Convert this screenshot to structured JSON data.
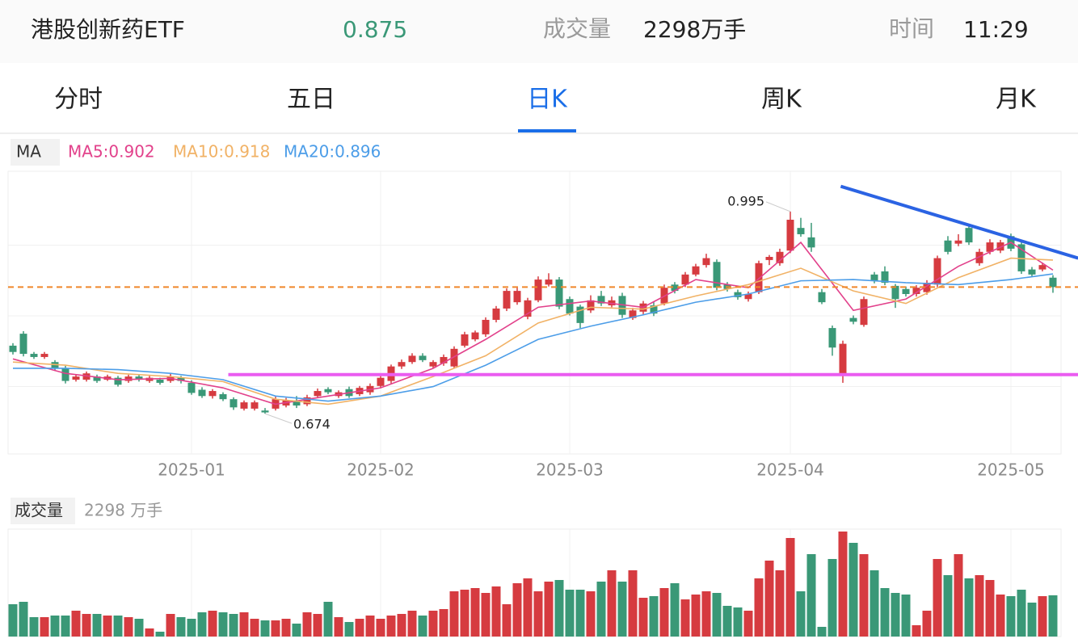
{
  "header": {
    "name": "港股创新药ETF",
    "price": 0.875,
    "volume_label": "成交量",
    "volume": "2298万手",
    "time_label": "时间",
    "time": "11:29"
  },
  "tabs": [
    "分时",
    "五日",
    "日K",
    "周K",
    "月K"
  ],
  "active_tab": "日K",
  "chart_data": {
    "type": "candlestick",
    "legend_label": "MA",
    "categories": [
      null,
      null,
      null,
      null,
      null,
      null,
      null,
      null,
      null,
      null,
      null,
      null,
      null,
      null,
      null,
      null,
      null,
      "2025-01",
      null,
      null,
      null,
      null,
      null,
      null,
      null,
      null,
      null,
      null,
      null,
      null,
      null,
      null,
      null,
      null,
      null,
      "2025-02",
      null,
      null,
      null,
      null,
      null,
      null,
      null,
      null,
      null,
      null,
      null,
      null,
      null,
      null,
      null,
      null,
      null,
      "2025-03",
      null,
      null,
      null,
      null,
      null,
      null,
      null,
      null,
      null,
      null,
      null,
      null,
      null,
      null,
      null,
      null,
      null,
      null,
      null,
      null,
      "2025-04",
      null,
      null,
      null,
      null,
      null,
      null,
      null,
      null,
      null,
      null,
      null,
      null,
      null,
      null,
      null,
      null,
      null,
      null,
      null,
      null,
      "2025-05",
      null,
      null,
      null,
      null
    ],
    "open": [
      0.782,
      0.801,
      0.769,
      0.764,
      0.756,
      0.746,
      0.728,
      0.728,
      0.733,
      0.728,
      0.731,
      0.726,
      0.733,
      0.726,
      0.728,
      0.726,
      0.731,
      0.723,
      0.712,
      0.702,
      0.705,
      0.697,
      0.682,
      0.682,
      0.679,
      0.682,
      0.687,
      0.695,
      0.689,
      0.702,
      0.713,
      0.702,
      0.713,
      0.705,
      0.708,
      0.718,
      0.726,
      0.749,
      0.756,
      0.766,
      0.749,
      0.754,
      0.749,
      0.782,
      0.792,
      0.8,
      0.823,
      0.841,
      0.851,
      0.828,
      0.854,
      0.879,
      0.887,
      0.856,
      0.844,
      0.838,
      0.861,
      0.846,
      0.861,
      0.826,
      0.836,
      0.846,
      0.849,
      0.879,
      0.879,
      0.895,
      0.91,
      0.915,
      0.879,
      0.867,
      0.856,
      0.867,
      0.918,
      0.913,
      0.933,
      0.969,
      0.954,
      0.867,
      0.81,
      0.738,
      0.826,
      0.815,
      0.895,
      0.9,
      0.877,
      0.872,
      0.864,
      0.867,
      0.879,
      0.949,
      0.944,
      0.969,
      0.913,
      0.931,
      0.933,
      0.956,
      0.943,
      0.903,
      0.903,
      0.89
    ],
    "high": [
      0.786,
      0.805,
      0.772,
      0.772,
      0.759,
      0.75,
      0.736,
      0.741,
      0.736,
      0.736,
      0.734,
      0.736,
      0.736,
      0.734,
      0.731,
      0.737,
      0.734,
      0.727,
      0.716,
      0.713,
      0.708,
      0.7,
      0.695,
      0.695,
      0.683,
      0.701,
      0.699,
      0.702,
      0.704,
      0.714,
      0.716,
      0.711,
      0.717,
      0.718,
      0.722,
      0.734,
      0.752,
      0.76,
      0.77,
      0.77,
      0.759,
      0.768,
      0.781,
      0.804,
      0.806,
      0.827,
      0.845,
      0.873,
      0.874,
      0.858,
      0.892,
      0.897,
      0.891,
      0.86,
      0.847,
      0.862,
      0.869,
      0.86,
      0.866,
      0.842,
      0.853,
      0.851,
      0.879,
      0.883,
      0.899,
      0.912,
      0.928,
      0.919,
      0.883,
      0.871,
      0.868,
      0.917,
      0.926,
      0.936,
      0.995,
      0.985,
      0.977,
      0.872,
      0.814,
      0.79,
      0.83,
      0.86,
      0.899,
      0.908,
      0.88,
      0.876,
      0.878,
      0.886,
      0.925,
      0.956,
      0.959,
      0.973,
      0.936,
      0.951,
      0.95,
      0.96,
      0.947,
      0.907,
      0.914,
      0.894
    ],
    "low": [
      0.768,
      0.765,
      0.761,
      0.761,
      0.742,
      0.722,
      0.725,
      0.725,
      0.723,
      0.726,
      0.717,
      0.723,
      0.725,
      0.723,
      0.72,
      0.723,
      0.722,
      0.704,
      0.699,
      0.698,
      0.694,
      0.68,
      0.679,
      0.679,
      0.674,
      0.679,
      0.684,
      0.683,
      0.686,
      0.699,
      0.705,
      0.699,
      0.699,
      0.702,
      0.704,
      0.715,
      0.722,
      0.745,
      0.753,
      0.756,
      0.746,
      0.75,
      0.746,
      0.779,
      0.789,
      0.796,
      0.819,
      0.837,
      0.847,
      0.824,
      0.851,
      0.876,
      0.84,
      0.83,
      0.81,
      0.834,
      0.845,
      0.843,
      0.826,
      0.823,
      0.832,
      0.829,
      0.846,
      0.865,
      0.875,
      0.892,
      0.906,
      0.87,
      0.868,
      0.855,
      0.852,
      0.864,
      0.91,
      0.909,
      0.929,
      0.955,
      0.931,
      0.848,
      0.766,
      0.723,
      0.816,
      0.812,
      0.881,
      0.878,
      0.842,
      0.86,
      0.86,
      0.863,
      0.875,
      0.927,
      0.94,
      0.942,
      0.909,
      0.927,
      0.929,
      0.932,
      0.896,
      0.891,
      0.9,
      0.866
    ],
    "close": [
      0.772,
      0.769,
      0.764,
      0.769,
      0.746,
      0.726,
      0.733,
      0.738,
      0.726,
      0.733,
      0.72,
      0.733,
      0.728,
      0.731,
      0.723,
      0.733,
      0.726,
      0.707,
      0.702,
      0.71,
      0.697,
      0.684,
      0.692,
      0.692,
      0.676,
      0.697,
      0.695,
      0.687,
      0.7,
      0.71,
      0.708,
      0.708,
      0.702,
      0.715,
      0.718,
      0.731,
      0.749,
      0.756,
      0.766,
      0.759,
      0.756,
      0.764,
      0.777,
      0.8,
      0.803,
      0.823,
      0.841,
      0.869,
      0.869,
      0.854,
      0.887,
      0.887,
      0.844,
      0.833,
      0.818,
      0.854,
      0.849,
      0.854,
      0.831,
      0.838,
      0.849,
      0.833,
      0.874,
      0.869,
      0.895,
      0.908,
      0.921,
      0.874,
      0.872,
      0.859,
      0.864,
      0.913,
      0.923,
      0.931,
      0.982,
      0.959,
      0.938,
      0.851,
      0.779,
      0.785,
      0.82,
      0.856,
      0.885,
      0.882,
      0.856,
      0.864,
      0.874,
      0.882,
      0.921,
      0.931,
      0.949,
      0.946,
      0.931,
      0.946,
      0.946,
      0.936,
      0.9,
      0.895,
      0.91,
      0.875
    ],
    "up_color": "#d63b40",
    "down_color": "#3a9877",
    "ylim": [
      0.61,
      1.059
    ],
    "series": [
      {
        "name": "MA5:0.902",
        "color": "#e2418b",
        "x": [
          0,
          5,
          10,
          15,
          20,
          25,
          30,
          35,
          40,
          45,
          50,
          55,
          60,
          65,
          70,
          75,
          80,
          85,
          90,
          95,
          99
        ],
        "values": [
          0.761,
          0.738,
          0.728,
          0.73,
          0.715,
          0.689,
          0.702,
          0.715,
          0.746,
          0.792,
          0.843,
          0.853,
          0.843,
          0.887,
          0.874,
          0.946,
          0.838,
          0.856,
          0.908,
          0.946,
          0.902
        ]
      },
      {
        "name": "MA10:0.918",
        "color": "#f1b266",
        "x": [
          0,
          5,
          10,
          15,
          20,
          25,
          30,
          35,
          40,
          45,
          50,
          55,
          60,
          65,
          70,
          75,
          80,
          85,
          90,
          95,
          99
        ],
        "values": [
          0.756,
          0.751,
          0.738,
          0.733,
          0.725,
          0.697,
          0.689,
          0.702,
          0.733,
          0.766,
          0.818,
          0.843,
          0.84,
          0.861,
          0.879,
          0.905,
          0.869,
          0.849,
          0.89,
          0.921,
          0.918
        ]
      },
      {
        "name": "MA20:0.896",
        "color": "#4c9de8",
        "x": [
          0,
          5,
          10,
          15,
          20,
          25,
          30,
          35,
          40,
          45,
          50,
          55,
          60,
          65,
          70,
          75,
          80,
          85,
          90,
          95,
          99
        ],
        "values": [
          0.746,
          0.746,
          0.744,
          0.738,
          0.728,
          0.702,
          0.694,
          0.702,
          0.717,
          0.751,
          0.792,
          0.813,
          0.831,
          0.851,
          0.864,
          0.885,
          0.887,
          0.882,
          0.879,
          0.887,
          0.896
        ]
      }
    ],
    "price_line_color": "#f0862a",
    "drawings": [
      {
        "color": "#ea5cf0",
        "x": [
          20.5,
          101.4
        ],
        "values": [
          0.736,
          0.736
        ]
      },
      {
        "color": "#2b63e3",
        "x": [
          78.8,
          101.4
        ],
        "values": [
          1.035,
          0.921
        ]
      }
    ],
    "volume_title": "成交量",
    "volume_value_label": "2298 万手",
    "volume": [
      1800,
      1935,
      1080,
      1080,
      1170,
      1170,
      1440,
      1260,
      1260,
      1170,
      1170,
      1080,
      990,
      450,
      270,
      1260,
      1080,
      990,
      1350,
      1440,
      1350,
      1260,
      1350,
      990,
      900,
      900,
      990,
      720,
      1350,
      1260,
      1935,
      1080,
      810,
      990,
      1170,
      990,
      1170,
      1260,
      1440,
      1170,
      1440,
      1530,
      2520,
      2610,
      2700,
      2430,
      2790,
      1800,
      2970,
      3240,
      2520,
      3060,
      3150,
      2610,
      2610,
      2520,
      3060,
      3690,
      3060,
      3690,
      2160,
      2250,
      2700,
      2970,
      2070,
      2340,
      2520,
      2430,
      1710,
      1620,
      1440,
      3240,
      4230,
      3690,
      5490,
      2520,
      4590,
      540,
      4320,
      5850,
      5220,
      4590,
      3690,
      2700,
      2430,
      2340,
      630,
      1440,
      4320,
      3420,
      4590,
      3240,
      3420,
      3150,
      2340,
      2250,
      2610,
      1890,
      2250,
      2298
    ],
    "volume_ylim": [
      0,
      5985
    ]
  }
}
